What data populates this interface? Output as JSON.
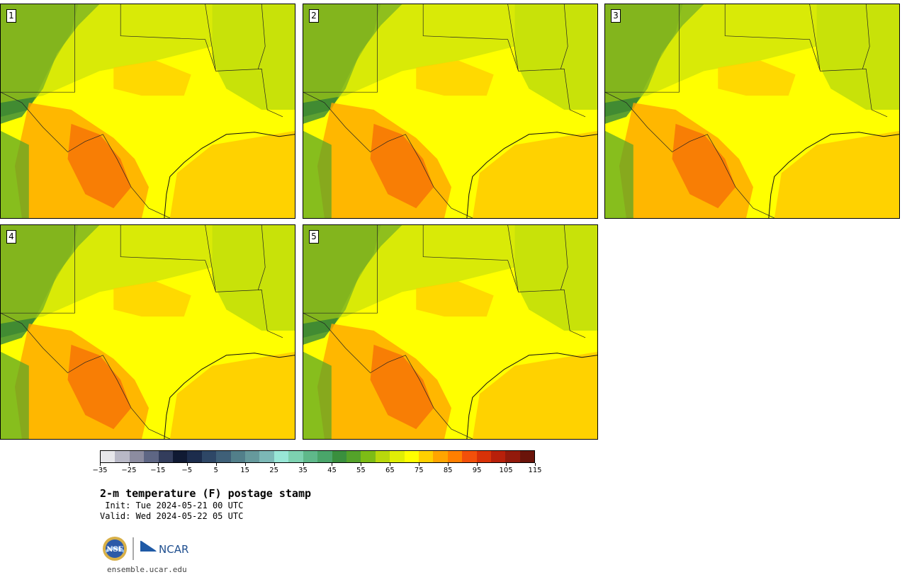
{
  "members": [
    "1",
    "2",
    "3",
    "4",
    "5"
  ],
  "colorbar": {
    "colors": [
      "#e6e6ea",
      "#b8b8c6",
      "#8c8ca0",
      "#5e6684",
      "#333d5c",
      "#101a33",
      "#1c2c4c",
      "#2e4766",
      "#3f6078",
      "#527f8a",
      "#66999c",
      "#7cb8b6",
      "#98e6d6",
      "#7dd1b0",
      "#5fb88a",
      "#4aa56a",
      "#3a8f3e",
      "#54a22a",
      "#7dbc16",
      "#b9d80c",
      "#e0ee06",
      "#ffff00",
      "#ffd000",
      "#ffa500",
      "#ff7f00",
      "#f2500a",
      "#d83208",
      "#b8200a",
      "#921a0c",
      "#6a140a"
    ],
    "tick_labels": [
      "−35",
      "−25",
      "−15",
      "−5",
      "5",
      "15",
      "25",
      "35",
      "45",
      "55",
      "65",
      "75",
      "85",
      "95",
      "105",
      "115"
    ]
  },
  "title": "2-m temperature (F) postage stamp",
  "init": " Init: Tue 2024-05-21 00 UTC",
  "valid": "Valid: Wed 2024-05-22 05 UTC",
  "logos": {
    "left": "NSF",
    "right": "NCAR"
  },
  "url": "ensemble.ucar.edu"
}
